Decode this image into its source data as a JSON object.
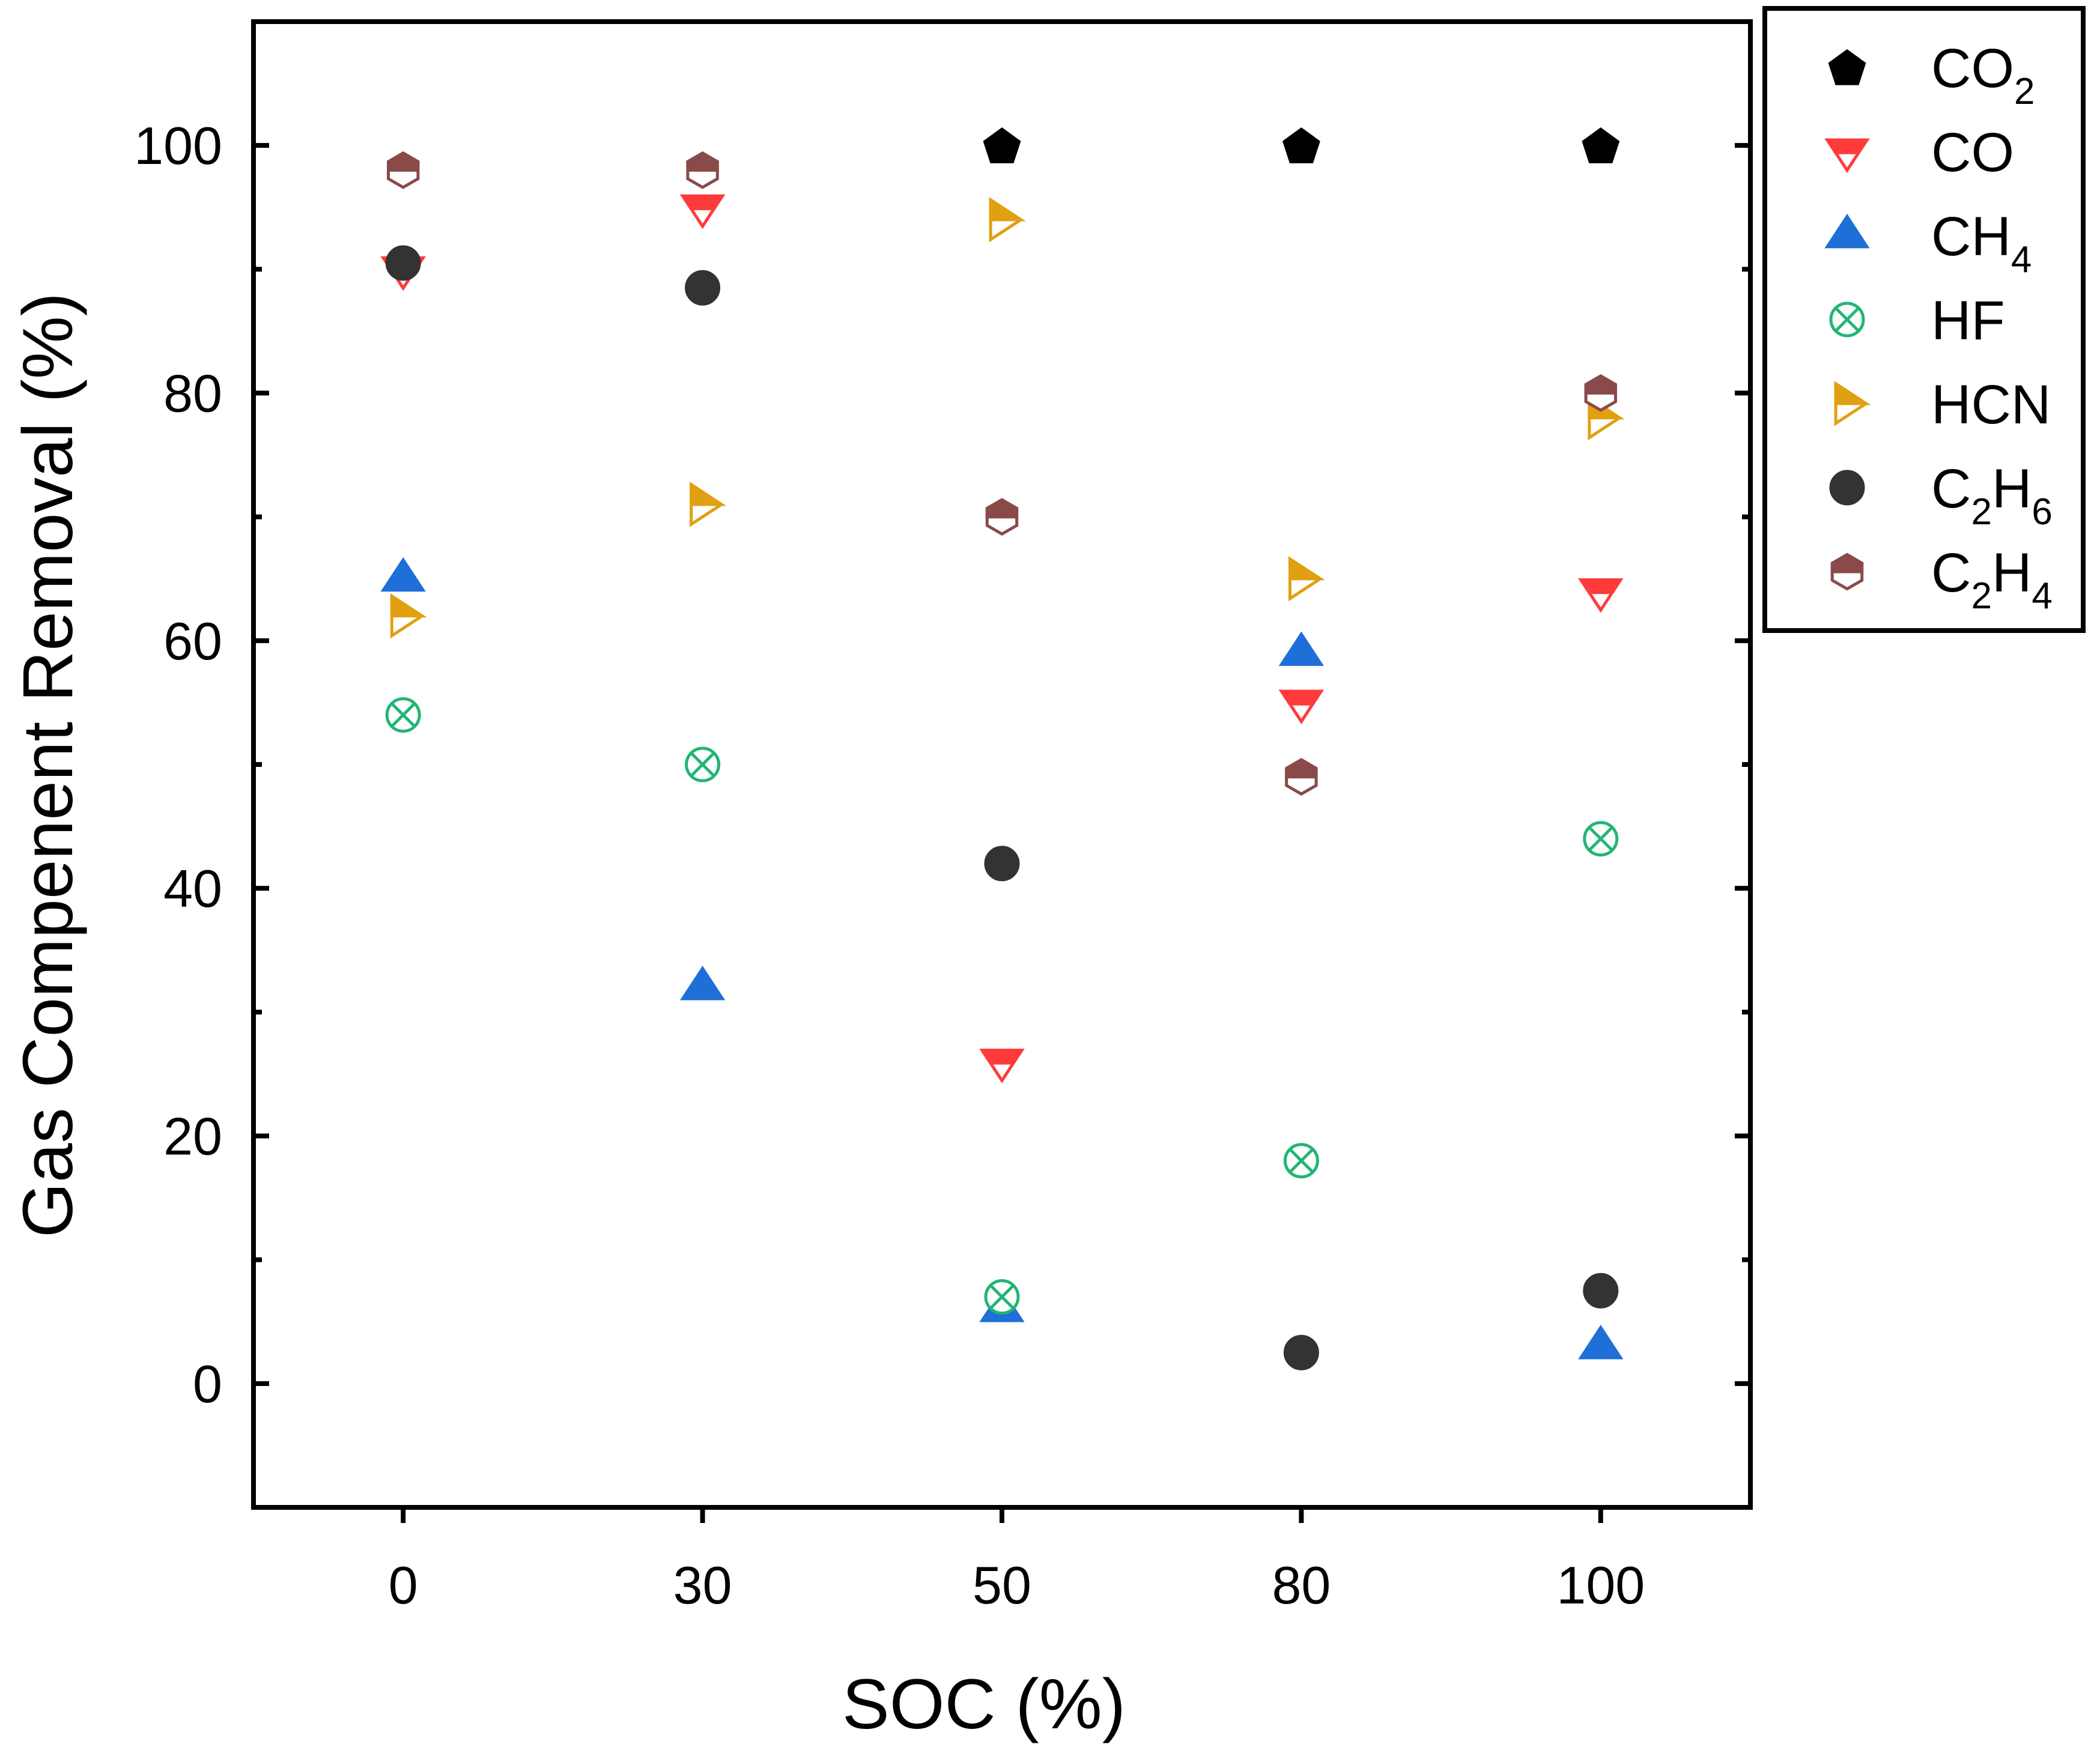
{
  "chart_data": {
    "type": "scatter",
    "title": "",
    "xlabel": "SOC (%)",
    "ylabel": "Gas Compenent Removal (%)",
    "categories": [
      "0",
      "30",
      "50",
      "80",
      "100"
    ],
    "xlim": [
      -0.5,
      4.5
    ],
    "ylim": [
      -10,
      110
    ],
    "yticks": [
      0,
      20,
      40,
      60,
      80,
      100
    ],
    "yticklabels": [
      "0",
      "20",
      "40",
      "60",
      "80",
      "100"
    ],
    "grid": false,
    "legend_position": "outside-top-right",
    "series": [
      {
        "name": "CO2",
        "label": "CO",
        "subscript": "2",
        "after": "",
        "marker": "pentagon",
        "color": "#000000",
        "values": [
          null,
          null,
          100,
          100,
          100
        ]
      },
      {
        "name": "CO",
        "label": "CO",
        "subscript": "",
        "after": "",
        "marker": "triangle-down-half",
        "color": "#ff3a3a",
        "values": [
          90,
          95,
          26,
          55,
          64
        ]
      },
      {
        "name": "CH4",
        "label": "CH",
        "subscript": "4",
        "after": "",
        "marker": "triangle-up",
        "color": "#1f6fd8",
        "values": [
          65,
          32,
          6,
          59,
          3
        ]
      },
      {
        "name": "HF",
        "label": "HF",
        "subscript": "",
        "after": "",
        "marker": "circle-x",
        "color": "#22b573",
        "values": [
          54,
          50,
          7,
          18,
          44
        ]
      },
      {
        "name": "HCN",
        "label": "HCN",
        "subscript": "",
        "after": "",
        "marker": "triangle-right-half",
        "color": "#e0a010",
        "values": [
          62,
          71,
          94,
          65,
          78
        ]
      },
      {
        "name": "C2H6",
        "label": "C",
        "subscript": "2",
        "after": "H",
        "subscript2": "6",
        "marker": "circle",
        "color": "#333333",
        "values": [
          90.5,
          88.5,
          42,
          2.5,
          7.5
        ]
      },
      {
        "name": "C2H4",
        "label": "C",
        "subscript": "2",
        "after": "H",
        "subscript2": "4",
        "marker": "hexagon-half",
        "color": "#8b4a4a",
        "values": [
          98,
          98,
          70,
          49,
          80
        ]
      }
    ]
  }
}
